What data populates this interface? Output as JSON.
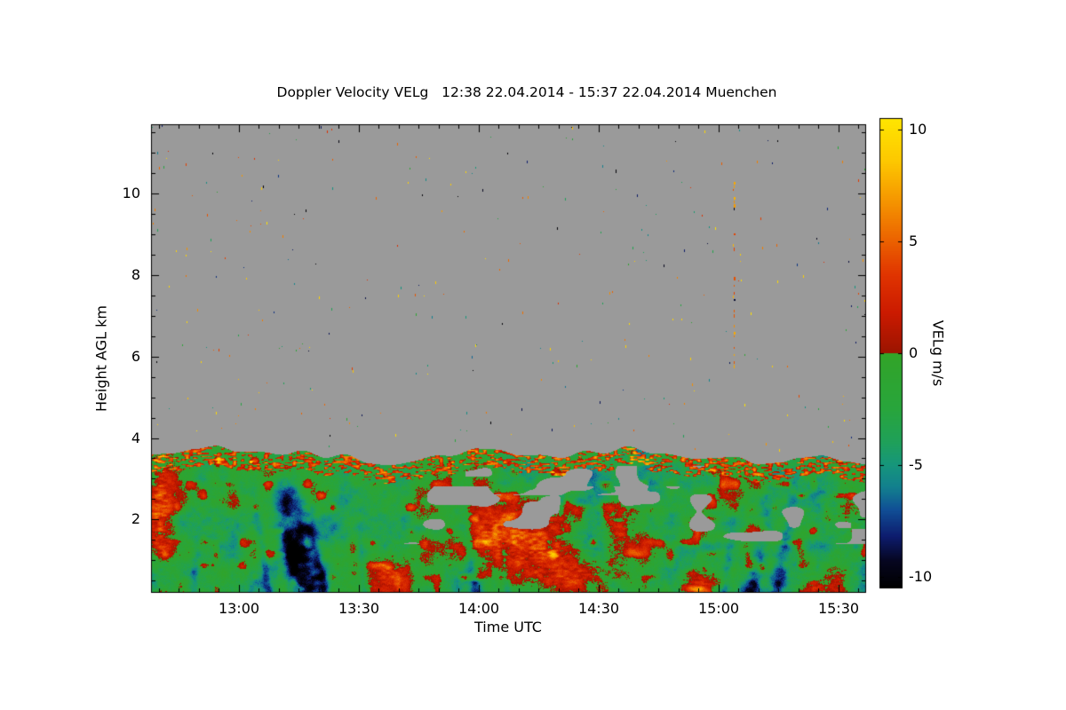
{
  "chart_data": {
    "type": "heatmap",
    "title": "Doppler Velocity VELg   12:38 22.04.2014 - 15:37 22.04.2014 Muenchen",
    "xlabel": "Time UTC",
    "ylabel": "Height AGL km",
    "x_ticks": [
      "13:00",
      "13:30",
      "14:00",
      "14:30",
      "15:00",
      "15:30"
    ],
    "x_minor_step_minutes": 5,
    "x_range_labels": [
      "12:38",
      "15:37"
    ],
    "x_range_minutes": [
      758,
      937
    ],
    "y_ticks": [
      2,
      4,
      6,
      8,
      10
    ],
    "y_minor_step_km": 0.5,
    "y_range_km": [
      0.2,
      11.7
    ],
    "nodata_color": "#9a9a9a",
    "colorbar": {
      "label": "VELg m/s",
      "ticks": [
        10,
        5,
        0,
        -5,
        -10
      ],
      "range": [
        -10.5,
        10.5
      ],
      "stops": [
        {
          "v": -10.5,
          "c": "#000000"
        },
        {
          "v": -9.3,
          "c": "#060620"
        },
        {
          "v": -8.2,
          "c": "#0d1c6e"
        },
        {
          "v": -7.0,
          "c": "#104f96"
        },
        {
          "v": -6.0,
          "c": "#12808e"
        },
        {
          "v": -5.0,
          "c": "#16967c"
        },
        {
          "v": -4.0,
          "c": "#1fa05a"
        },
        {
          "v": -2.5,
          "c": "#28a53c"
        },
        {
          "v": -0.02,
          "c": "#32a428"
        },
        {
          "v": 0.02,
          "c": "#9c1400"
        },
        {
          "v": 1.8,
          "c": "#cb1a00"
        },
        {
          "v": 3.5,
          "c": "#e03400"
        },
        {
          "v": 5.2,
          "c": "#ec6700"
        },
        {
          "v": 7.0,
          "c": "#f69b00"
        },
        {
          "v": 8.6,
          "c": "#fdc800"
        },
        {
          "v": 10.5,
          "c": "#ffe600"
        }
      ]
    },
    "field_description": "Boundary layer up to ~3.2-4.0 km AGL filled with mostly weakly negative (green) Doppler velocities, teal/dark-blue downdraft streaks (strongest near 13:20 reaching -10 m/s), red updraft patches (strongest 14:05-14:50 at 1-2.5 km), a red/green mottled cap near layer top, gray data gaps near 2 km after 13:40, and sparse colored noise specks in the gray no-data region above, including a dashed vertical artifact column near 15:04 between 5.6 and 10.4 km.",
    "features": {
      "layer_top": {
        "base": 3.55,
        "amp1": 0.22,
        "f1": 9,
        "amp2": 0.12,
        "f2": 33
      },
      "cap_depth": 0.45,
      "streaks": [
        {
          "t0": 0.225,
          "slant": -0.011,
          "width": 0.016,
          "strength": 9.5,
          "hmax": 3.4
        },
        {
          "t0": 0.205,
          "slant": -0.01,
          "width": 0.01,
          "strength": 6.5,
          "hmax": 3.2
        },
        {
          "t0": 0.245,
          "slant": -0.012,
          "width": 0.008,
          "strength": 7.0,
          "hmax": 2.6
        },
        {
          "t0": 0.165,
          "slant": -0.008,
          "width": 0.007,
          "strength": 4.5,
          "hmax": 3.0
        },
        {
          "t0": 0.3,
          "slant": -0.006,
          "width": 0.006,
          "strength": 4.0,
          "hmax": 2.4
        },
        {
          "t0": 0.058,
          "slant": 0.004,
          "width": 0.006,
          "strength": 4.0,
          "hmax": 1.8
        },
        {
          "t0": 0.455,
          "slant": -0.008,
          "width": 0.009,
          "strength": 5.5,
          "hmax": 3.0
        },
        {
          "t0": 0.5,
          "slant": -0.006,
          "width": 0.005,
          "strength": 4.0,
          "hmax": 2.0
        },
        {
          "t0": 0.838,
          "slant": 0.01,
          "width": 0.012,
          "strength": 6.5,
          "hmax": 3.5
        },
        {
          "t0": 0.872,
          "slant": 0.011,
          "width": 0.009,
          "strength": 5.5,
          "hmax": 3.3
        },
        {
          "t0": 0.8,
          "slant": 0.008,
          "width": 0.006,
          "strength": 3.5,
          "hmax": 2.2
        }
      ],
      "patches": [
        {
          "t": 0.012,
          "h": 2.0,
          "rt": 0.018,
          "rh": 1.8,
          "amp": 7
        },
        {
          "t": 0.335,
          "h": 0.6,
          "rt": 0.03,
          "rh": 0.5,
          "amp": 5
        },
        {
          "t": 0.48,
          "h": 1.6,
          "rt": 0.05,
          "rh": 0.7,
          "amp": 6
        },
        {
          "t": 0.545,
          "h": 1.5,
          "rt": 0.04,
          "rh": 0.9,
          "amp": 6
        },
        {
          "t": 0.6,
          "h": 0.8,
          "rt": 0.05,
          "rh": 0.6,
          "amp": 5
        },
        {
          "t": 0.655,
          "h": 1.9,
          "rt": 0.03,
          "rh": 0.5,
          "amp": 5
        },
        {
          "t": 0.77,
          "h": 0.4,
          "rt": 0.03,
          "rh": 0.35,
          "amp": 4
        },
        {
          "t": 0.94,
          "h": 0.5,
          "rt": 0.05,
          "rh": 0.4,
          "amp": 4
        },
        {
          "t": 0.97,
          "h": 2.1,
          "rt": 0.035,
          "rh": 0.5,
          "amp": 5
        }
      ],
      "holes": [
        {
          "t_start": 0.33,
          "t_end": 1.0,
          "h_center": 2.1,
          "h_halfwidth": 0.7,
          "threshold": 0.7,
          "seed": 71
        },
        {
          "t_start": 0.44,
          "t_end": 0.78,
          "h_center": 2.95,
          "h_halfwidth": 0.35,
          "threshold": 0.73,
          "seed": 72
        }
      ],
      "specks": {
        "count": 300
      },
      "vstreaks": [
        {
          "t": 0.816,
          "h0": 5.6,
          "h1": 10.4,
          "density": 0.42
        }
      ],
      "dashes": [
        {
          "t": 0.65,
          "h": 10.6,
          "v": -10.3,
          "len": 4
        },
        {
          "t": 0.718,
          "h": 8.25,
          "v": -9.5,
          "len": 3
        },
        {
          "t": 0.262,
          "h": 11.3,
          "v": -10.0,
          "len": 3
        },
        {
          "t": 0.078,
          "h": 9.5,
          "v": 4.5,
          "len": 3
        },
        {
          "t": 0.44,
          "h": 7.0,
          "v": -5.0,
          "len": 3
        },
        {
          "t": 0.968,
          "h": 10.8,
          "v": 6.0,
          "len": 3
        },
        {
          "t": 0.913,
          "h": 8.0,
          "v": 9.0,
          "len": 3
        },
        {
          "t": 0.775,
          "h": 11.55,
          "v": 9.5,
          "len": 3
        }
      ]
    }
  }
}
